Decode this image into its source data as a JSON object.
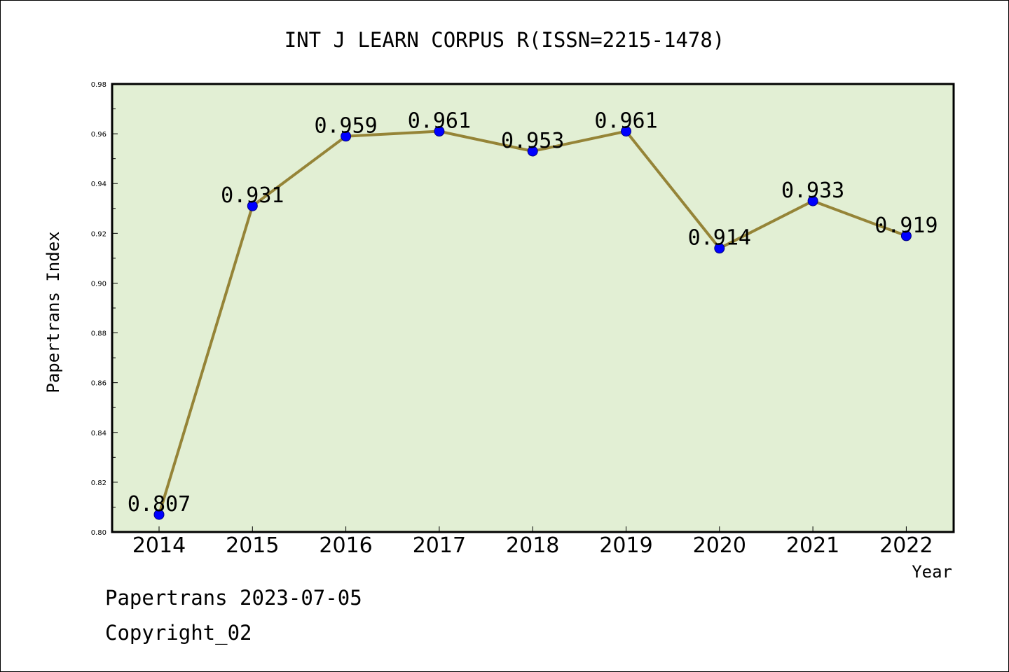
{
  "chart_data": {
    "type": "line",
    "title": "INT J LEARN CORPUS R(ISSN=2215-1478)",
    "xlabel": "Year",
    "ylabel": "Papertrans Index",
    "categories": [
      "2014",
      "2015",
      "2016",
      "2017",
      "2018",
      "2019",
      "2020",
      "2021",
      "2022"
    ],
    "values": [
      0.807,
      0.931,
      0.959,
      0.961,
      0.953,
      0.961,
      0.914,
      0.933,
      0.919
    ],
    "value_labels": [
      "0.807",
      "0.931",
      "0.959",
      "0.961",
      "0.953",
      "0.961",
      "0.914",
      "0.933",
      "0.919"
    ],
    "ylim": [
      0.8,
      0.98
    ],
    "yticks": [
      "0.80",
      "0.82",
      "0.84",
      "0.86",
      "0.88",
      "0.90",
      "0.92",
      "0.94",
      "0.96",
      "0.98"
    ],
    "grid": false,
    "colors": {
      "plot_background": "#e2efd4",
      "line": "#958437",
      "marker": "#0000ff",
      "axes": "#000000"
    }
  },
  "footer": {
    "line1": "Papertrans 2023-07-05",
    "line2": "Copyright_02"
  }
}
